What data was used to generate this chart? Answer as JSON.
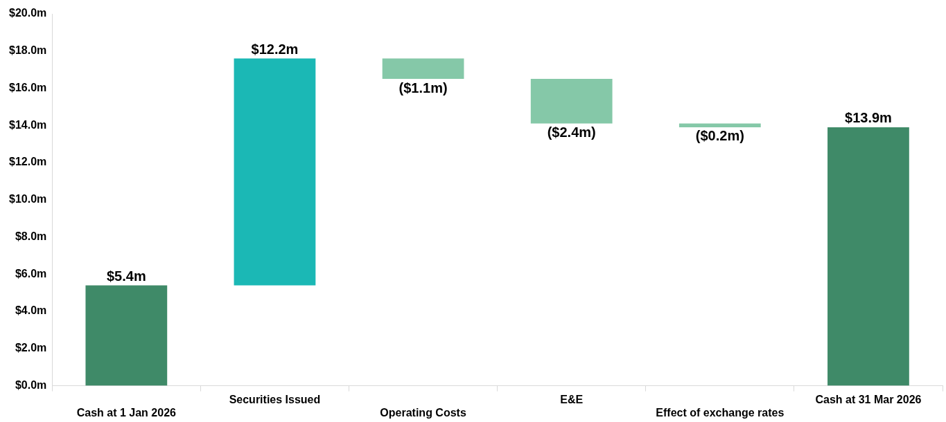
{
  "chart_data": {
    "type": "bar",
    "categories": [
      "Cash at 1 Jan 2026",
      "Securities Issued",
      "Operating Costs",
      "E&E",
      "Effect of exchange rates",
      "Cash at 31 Mar 2026"
    ],
    "values": [
      5.4,
      12.2,
      -1.1,
      -2.4,
      -0.2,
      13.9
    ],
    "base": [
      0,
      5.4,
      17.6,
      16.5,
      14.1,
      0
    ],
    "colors": [
      "#3f8a68",
      "#1bb8b5",
      "#85c8a8",
      "#85c8a8",
      "#85c8a8",
      "#3f8a68"
    ],
    "value_labels": [
      "$5.4m",
      "$12.2m",
      "($1.1m)",
      "($2.4m)",
      "($0.2m)",
      "$13.9m"
    ],
    "ylim": [
      0,
      20
    ],
    "yticks": [
      {
        "value": 0,
        "label": "$0.0m"
      },
      {
        "value": 2,
        "label": "$2.0m"
      },
      {
        "value": 4,
        "label": "$4.0m"
      },
      {
        "value": 6,
        "label": "$6.0m"
      },
      {
        "value": 8,
        "label": "$8.0m"
      },
      {
        "value": 10,
        "label": "$10.0m"
      },
      {
        "value": 12,
        "label": "$12.0m"
      },
      {
        "value": 14,
        "label": "$14.0m"
      },
      {
        "value": 16,
        "label": "$16.0m"
      },
      {
        "value": 18,
        "label": "$18.0m"
      },
      {
        "value": 20,
        "label": "$20.0m"
      }
    ],
    "legend": false
  }
}
